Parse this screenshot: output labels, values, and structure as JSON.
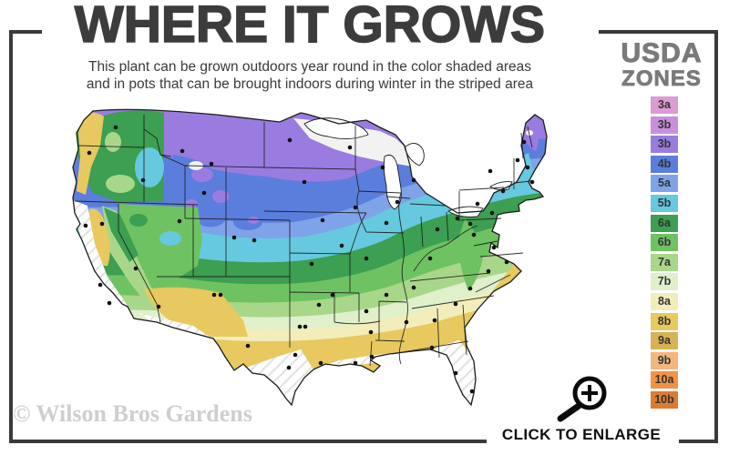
{
  "header": {
    "title": "WHERE IT GROWS",
    "subtitle_line1": "This plant can be grown outdoors year round in the color shaded areas",
    "subtitle_line2": "and in pots that can be brought indoors during winter in the striped area"
  },
  "legend": {
    "title_line1": "USDA",
    "title_line2": "ZONES",
    "zones": [
      {
        "label": "3a",
        "color": "#DD9BD3"
      },
      {
        "label": "3b",
        "color": "#C98FDB"
      },
      {
        "label": "3b",
        "color": "#9A7CE0"
      },
      {
        "label": "4b",
        "color": "#5B7EDD"
      },
      {
        "label": "5a",
        "color": "#7FA3E8"
      },
      {
        "label": "5b",
        "color": "#66C9DF"
      },
      {
        "label": "6a",
        "color": "#3C9F51"
      },
      {
        "label": "6b",
        "color": "#6FC262"
      },
      {
        "label": "7a",
        "color": "#A9D78A"
      },
      {
        "label": "7b",
        "color": "#DFF0CB"
      },
      {
        "label": "8a",
        "color": "#F2EDBA"
      },
      {
        "label": "8b",
        "color": "#E7C95F"
      },
      {
        "label": "9a",
        "color": "#D8B254"
      },
      {
        "label": "9b",
        "color": "#F4B67D"
      },
      {
        "label": "10a",
        "color": "#F29244"
      },
      {
        "label": "10b",
        "color": "#DF7A31"
      }
    ]
  },
  "map": {
    "name": "USDA plant hardiness zone map of the contiguous United States",
    "lake_color": "#FFFFFF",
    "cold_area_color": "#F2F2F2",
    "stripe_color": "#E3E3E3",
    "outline_color": "#1C1C1C",
    "state_line_color": "#1B1B1B",
    "dot_color": "#111111"
  },
  "footer": {
    "watermark": "© Wilson Bros Gardens",
    "enlarge_label": "CLICK TO ENLARGE"
  }
}
